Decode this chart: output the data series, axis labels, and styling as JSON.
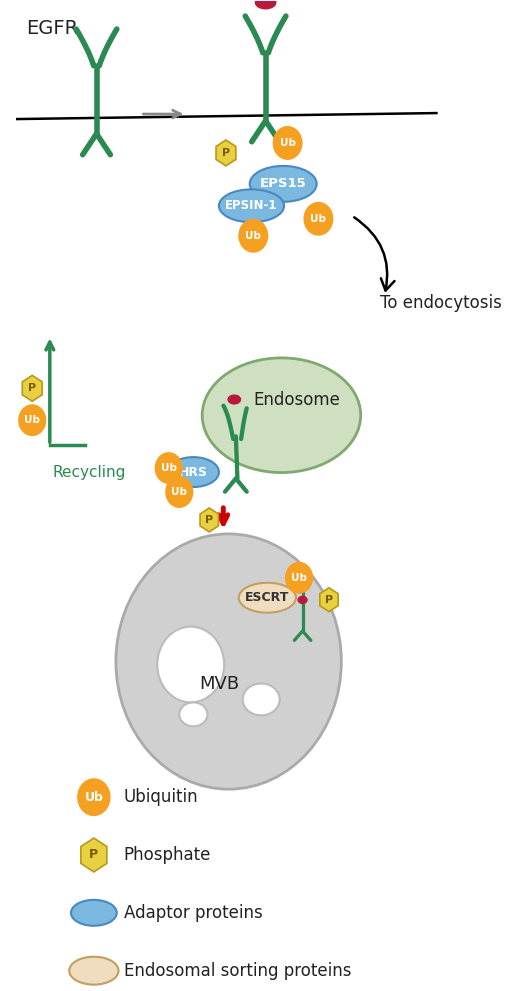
{
  "bg_color": "#ffffff",
  "green_receptor": "#2a8a50",
  "orange_ub": "#f5a020",
  "yellow_phosphate": "#e8d040",
  "blue_adaptor": "#7ab8e0",
  "red_ligand": "#bb1840",
  "endosome_color": "#cfe0c0",
  "mvb_color": "#d0d0d0",
  "escrt_color": "#f0ddc0",
  "green_text": "#2a8a50",
  "text_dark": "#222222",
  "legend_ubiquitin_label": "Ubiquitin",
  "legend_phosphate_label": "Phosphate",
  "legend_adaptor_label": "Adaptor proteins",
  "legend_endosomal_label": "Endosomal sorting proteins",
  "title": "EGFR",
  "recycling_label": "Recycling",
  "endocytosis_label": "To endocytosis",
  "endosome_label": "Endosome",
  "mvb_label": "MVB"
}
